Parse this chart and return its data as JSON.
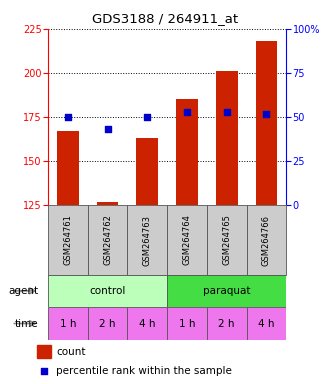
{
  "title": "GDS3188 / 264911_at",
  "samples": [
    "GSM264761",
    "GSM264762",
    "GSM264763",
    "GSM264764",
    "GSM264765",
    "GSM264766"
  ],
  "counts": [
    167,
    127,
    163,
    185,
    201,
    218
  ],
  "percentiles": [
    50,
    43,
    50,
    53,
    53,
    52
  ],
  "bar_color": "#cc2200",
  "dot_color": "#0000cc",
  "ylim_left": [
    125,
    225
  ],
  "ylim_right": [
    0,
    100
  ],
  "yticks_left": [
    125,
    150,
    175,
    200,
    225
  ],
  "yticks_right": [
    0,
    25,
    50,
    75,
    100
  ],
  "ytick_labels_right": [
    "0",
    "25",
    "50",
    "75",
    "100%"
  ],
  "control_label": "control",
  "paraquat_label": "paraquat",
  "agent_label": "agent",
  "time_label": "time",
  "time_values": [
    "1 h",
    "2 h",
    "4 h",
    "1 h",
    "2 h",
    "4 h"
  ],
  "control_color": "#bbffbb",
  "paraquat_color": "#44dd44",
  "time_color": "#ee77ee",
  "sample_bg_color": "#cccccc",
  "legend_count_label": "count",
  "legend_pct_label": "percentile rank within the sample",
  "bg_color": "#ffffff"
}
